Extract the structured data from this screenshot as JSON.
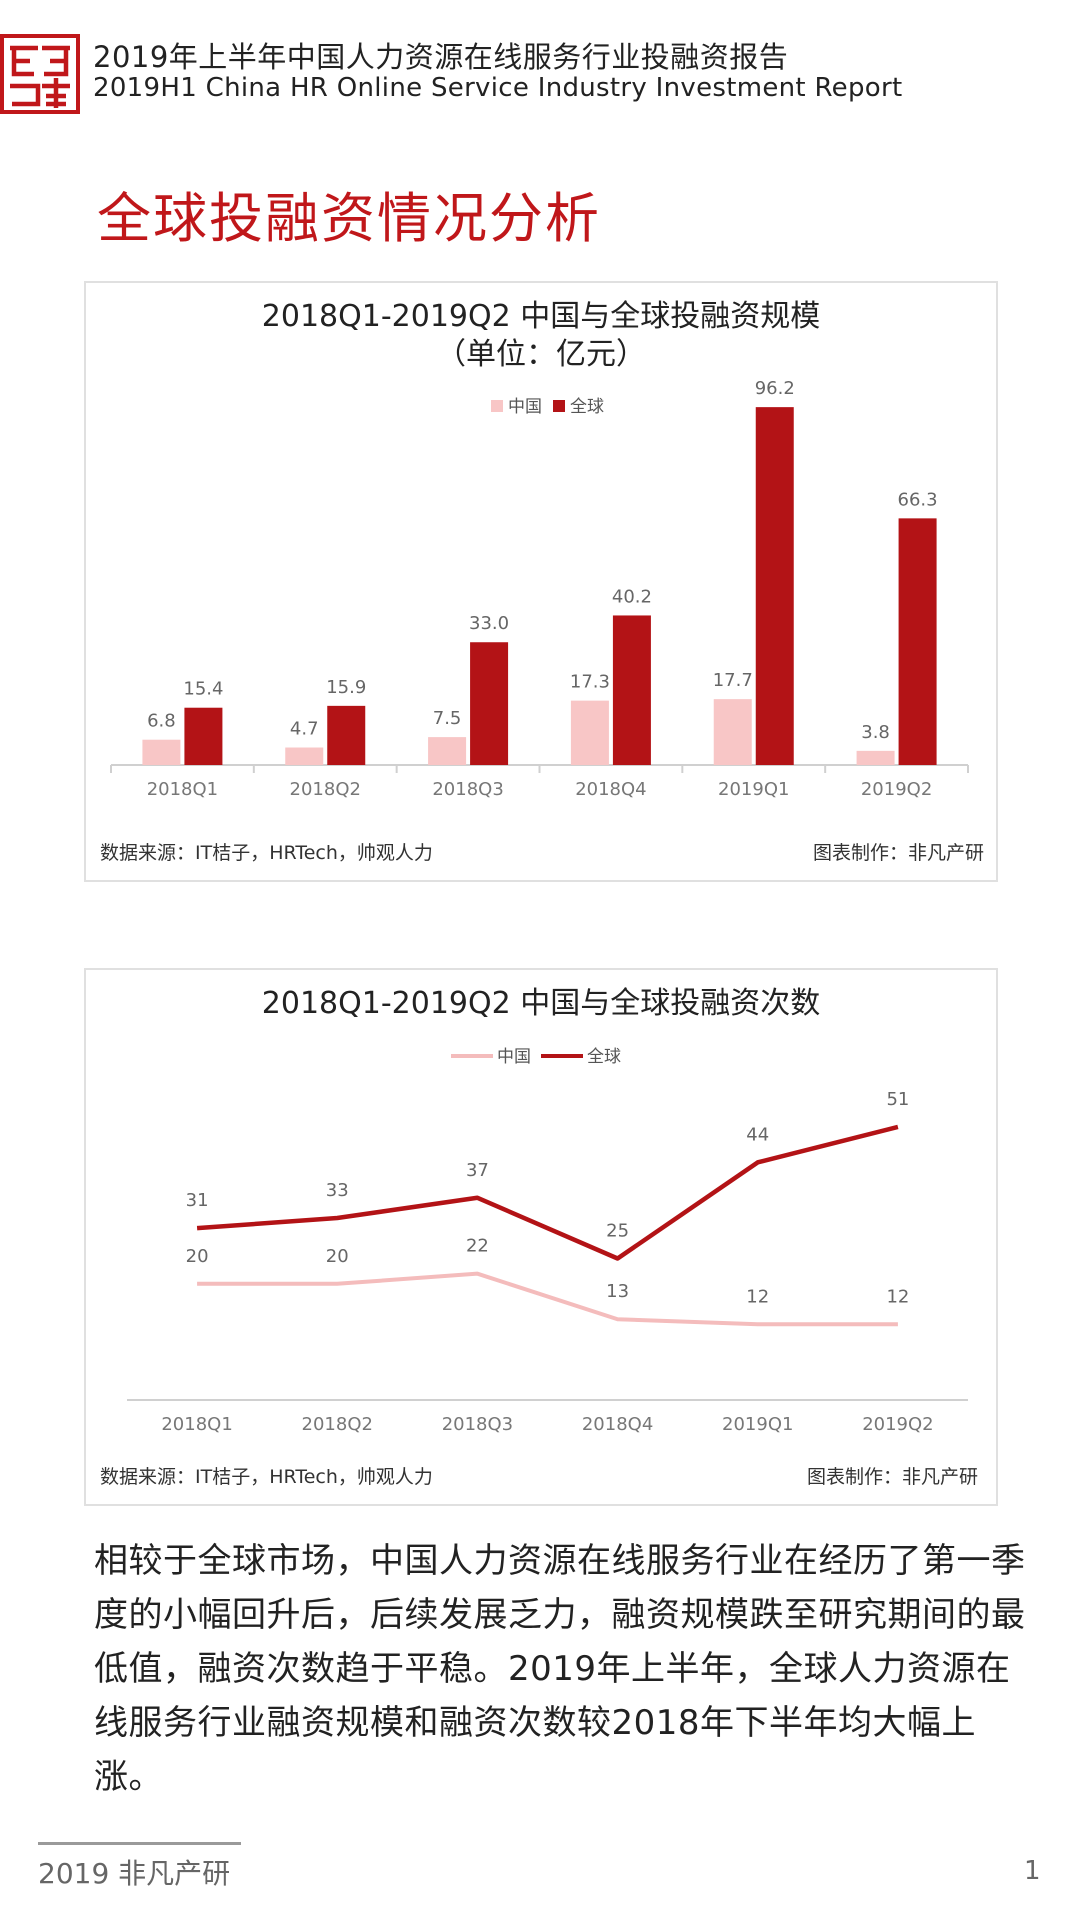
{
  "header": {
    "title_cn": "2019年上半年中国人力资源在线服务行业投融资报告",
    "title_en": "2019H1 China HR Online Service Industry Investment Report"
  },
  "section_title": "全球投融资情况分析",
  "colors": {
    "accent": "#c0171a",
    "china": "#f8c6c6",
    "global": "#b31316",
    "china_line": "#f4bcbc"
  },
  "chart_data": [
    {
      "type": "bar",
      "title": "2018Q1-2019Q2 中国与全球投融资规模",
      "subtitle": "（单位：亿元）",
      "categories": [
        "2018Q1",
        "2018Q2",
        "2018Q3",
        "2018Q4",
        "2019Q1",
        "2019Q2"
      ],
      "series": [
        {
          "name": "中国",
          "values": [
            6.8,
            4.7,
            7.5,
            17.3,
            17.7,
            3.8
          ],
          "labels": [
            "6.8",
            "4.7",
            "7.5",
            "17.3",
            "17.7",
            "3.8"
          ]
        },
        {
          "name": "全球",
          "values": [
            15.4,
            15.9,
            33.0,
            40.2,
            96.2,
            66.3
          ],
          "labels": [
            "15.4",
            "15.9",
            "33.0",
            "40.2",
            "96.2",
            "66.3"
          ]
        }
      ],
      "ylim": [
        0,
        100
      ],
      "legend": "top-center",
      "grid": false,
      "source": "数据来源：IT桔子，HRTech，帅观人力",
      "maker": "图表制作：非凡产研"
    },
    {
      "type": "line",
      "title": "2018Q1-2019Q2 中国与全球投融资次数",
      "categories": [
        "2018Q1",
        "2018Q2",
        "2018Q3",
        "2018Q4",
        "2019Q1",
        "2019Q2"
      ],
      "series": [
        {
          "name": "中国",
          "values": [
            20,
            20,
            22,
            13,
            12,
            12
          ]
        },
        {
          "name": "全球",
          "values": [
            31,
            33,
            37,
            25,
            44,
            51
          ]
        }
      ],
      "ylim": [
        0,
        60
      ],
      "legend": "top-center",
      "grid": false,
      "source": "数据来源：IT桔子，HRTech，帅观人力",
      "maker": "图表制作：非凡产研"
    }
  ],
  "paragraph": "相较于全球市场，中国人力资源在线服务行业在经历了第一季度的小幅回升后，后续发展乏力，融资规模跌至研究期间的最低值，融资次数趋于平稳。2019年上半年，全球人力资源在线服务行业融资规模和融资次数较2018年下半年均大幅上涨。",
  "footer": {
    "left": "2019 非凡产研",
    "page": "1"
  }
}
